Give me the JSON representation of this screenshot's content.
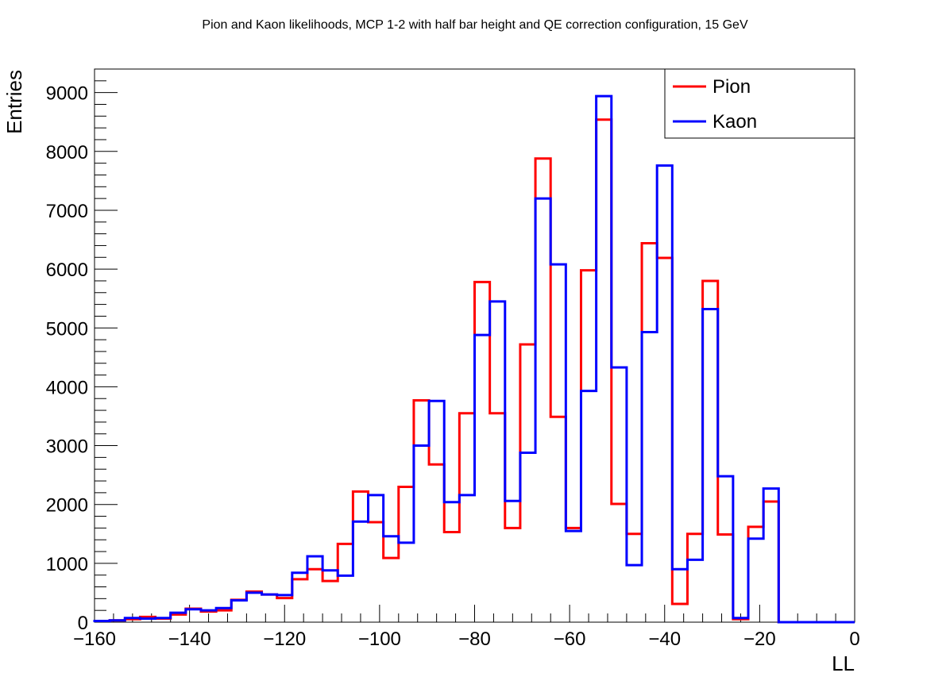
{
  "chart_data": {
    "type": "line",
    "title": "Pion and Kaon likelihoods, MCP 1-2 with half bar height and QE correction configuration, 15 GeV",
    "xlabel": "LL",
    "ylabel": "Entries",
    "xlim": [
      -160,
      0
    ],
    "ylim": [
      0,
      9400
    ],
    "x_ticks": [
      -160,
      -140,
      -120,
      -100,
      -80,
      -60,
      -40,
      -20,
      0
    ],
    "x_tick_labels": [
      "−160",
      "−140",
      "−120",
      "−100",
      "−80",
      "−60",
      "−40",
      "−20",
      "0"
    ],
    "y_ticks": [
      0,
      1000,
      2000,
      3000,
      4000,
      5000,
      6000,
      7000,
      8000,
      9000
    ],
    "y_tick_labels": [
      "0",
      "1000",
      "2000",
      "3000",
      "4000",
      "5000",
      "6000",
      "7000",
      "8000",
      "9000"
    ],
    "bin_edges_start": -160,
    "bin_width": 3.2,
    "bin_count": 50,
    "legend_position": "top-right",
    "series": [
      {
        "name": "Pion",
        "color": "#ff0000",
        "values": [
          20,
          30,
          50,
          90,
          60,
          130,
          230,
          180,
          200,
          380,
          520,
          470,
          410,
          730,
          900,
          700,
          1330,
          2220,
          1700,
          1090,
          2300,
          3770,
          2680,
          1530,
          3550,
          5780,
          3550,
          1600,
          4720,
          7880,
          3490,
          1600,
          5980,
          8540,
          2010,
          1500,
          6440,
          6190,
          310,
          1500,
          5800,
          1490,
          50,
          1620,
          2050,
          0,
          0,
          0,
          0,
          0
        ]
      },
      {
        "name": "Kaon",
        "color": "#0000ff",
        "values": [
          20,
          30,
          70,
          60,
          70,
          160,
          220,
          200,
          240,
          370,
          500,
          470,
          460,
          840,
          1120,
          880,
          790,
          1710,
          2160,
          1460,
          1350,
          3000,
          3760,
          2040,
          2160,
          4880,
          5450,
          2060,
          2880,
          7200,
          6080,
          1550,
          3930,
          8940,
          4330,
          970,
          4930,
          7760,
          900,
          1060,
          5320,
          2480,
          70,
          1420,
          2270,
          0,
          0,
          0,
          0,
          0
        ]
      }
    ]
  }
}
